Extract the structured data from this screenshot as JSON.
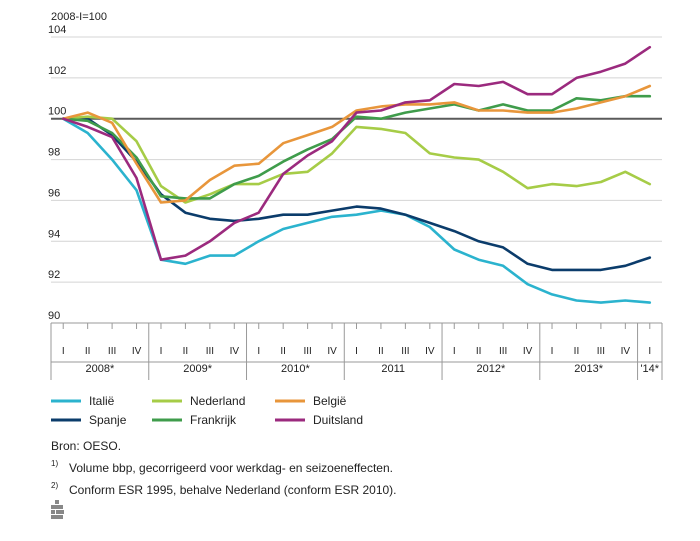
{
  "chart_data": {
    "type": "line",
    "unit_label": "2008-I=100",
    "y_ticks": [
      90,
      92,
      94,
      96,
      98,
      100,
      102,
      104
    ],
    "ylim": [
      90,
      104
    ],
    "reference_line": 100,
    "quarter_labels": [
      "I",
      "II",
      "III",
      "IV",
      "I",
      "II",
      "III",
      "IV",
      "I",
      "II",
      "III",
      "IV",
      "I",
      "II",
      "III",
      "IV",
      "I",
      "II",
      "III",
      "IV",
      "I",
      "II",
      "III",
      "IV",
      "I"
    ],
    "year_labels": [
      "2008*",
      "2009*",
      "2010*",
      "2011",
      "2012*",
      "2013*",
      "'14*"
    ],
    "series": [
      {
        "name": "Italië",
        "color": "#2bb3ce",
        "values": [
          100,
          99.3,
          98.0,
          96.5,
          93.1,
          92.9,
          93.3,
          93.3,
          94.0,
          94.6,
          94.9,
          95.2,
          95.3,
          95.5,
          95.3,
          94.7,
          93.6,
          93.1,
          92.8,
          91.9,
          91.4,
          91.1,
          91.0,
          91.1,
          91.0
        ]
      },
      {
        "name": "Spanje",
        "color": "#0b3c6b",
        "values": [
          100,
          100.0,
          99.2,
          97.9,
          96.3,
          95.4,
          95.1,
          95.0,
          95.1,
          95.3,
          95.3,
          95.5,
          95.7,
          95.6,
          95.3,
          94.9,
          94.5,
          94.0,
          93.7,
          92.9,
          92.6,
          92.6,
          92.6,
          92.8,
          93.2
        ]
      },
      {
        "name": "Nederland",
        "color": "#a6cc47",
        "values": [
          100,
          100.1,
          100.0,
          98.9,
          96.7,
          95.9,
          96.3,
          96.8,
          96.8,
          97.3,
          97.4,
          98.3,
          99.6,
          99.5,
          99.3,
          98.3,
          98.1,
          98.0,
          97.4,
          96.6,
          96.8,
          96.7,
          96.9,
          97.4,
          96.8
        ]
      },
      {
        "name": "Frankrijk",
        "color": "#3f9c4b",
        "values": [
          100,
          99.9,
          99.3,
          98.1,
          96.2,
          96.1,
          96.1,
          96.8,
          97.2,
          97.9,
          98.5,
          99.0,
          100.1,
          100.0,
          100.3,
          100.5,
          100.7,
          100.4,
          100.7,
          100.4,
          100.4,
          101.0,
          100.9,
          101.1,
          101.1
        ]
      },
      {
        "name": "België",
        "color": "#e8963b",
        "values": [
          100,
          100.3,
          99.8,
          97.8,
          95.9,
          96.0,
          97.0,
          97.7,
          97.8,
          98.8,
          99.2,
          99.6,
          100.4,
          100.6,
          100.7,
          100.7,
          100.8,
          100.4,
          100.4,
          100.3,
          100.3,
          100.5,
          100.8,
          101.1,
          101.6
        ]
      },
      {
        "name": "Duitsland",
        "color": "#9b2a7e",
        "values": [
          100,
          99.6,
          99.1,
          97.1,
          93.1,
          93.3,
          94.0,
          94.9,
          95.4,
          97.3,
          98.2,
          98.9,
          100.3,
          100.4,
          100.8,
          100.9,
          101.7,
          101.6,
          101.8,
          101.2,
          101.2,
          102.0,
          102.3,
          102.7,
          103.5
        ]
      }
    ]
  },
  "source": "Bron: OESO.",
  "notes": [
    {
      "num": "1)",
      "text": "Volume bbp, gecorrigeerd voor werkdag- en seizoeneffecten."
    },
    {
      "num": "2)",
      "text": "Conform ESR 1995, behalve Nederland (conform ESR 2010)."
    }
  ]
}
